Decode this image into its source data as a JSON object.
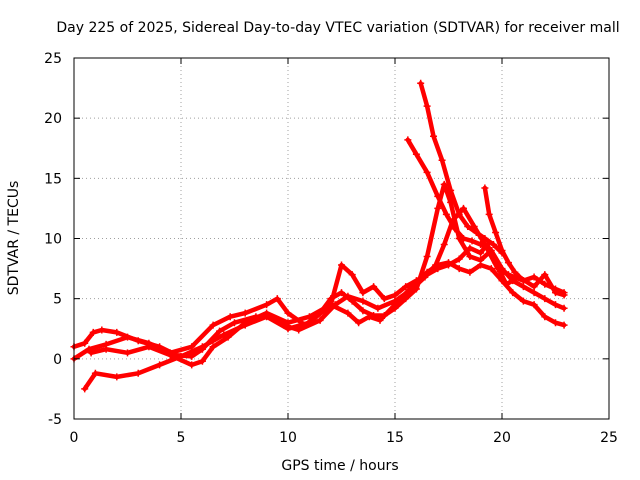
{
  "chart_data": {
    "type": "scatter",
    "title": "Day 225 of 2025, Sidereal Day-to-day VTEC variation (SDTVAR) for receiver mall",
    "xlabel": "GPS time / hours",
    "ylabel": "SDTVAR / TECUs",
    "xlim": [
      0,
      25
    ],
    "ylim": [
      -5,
      25
    ],
    "xticks": [
      0,
      5,
      10,
      15,
      20,
      25
    ],
    "yticks": [
      -5,
      0,
      5,
      10,
      15,
      20,
      25
    ],
    "grid": true,
    "marker": "+",
    "color": "#ff0000",
    "series": [
      {
        "name": "track-1",
        "x": [
          0,
          0.5,
          0.9,
          1.3,
          2.0,
          3.0,
          4.0,
          4.8,
          5.5,
          6.0,
          6.8,
          7.5,
          8.5,
          9.2,
          9.8,
          10.5,
          11.5,
          12.2,
          12.8,
          13.5,
          14.2,
          15.0,
          15.8,
          16.4,
          16.9,
          17.3,
          17.7,
          18.2,
          18.7,
          19.2,
          19.8,
          20.3,
          21.0,
          21.5,
          22.0,
          22.5,
          22.9
        ],
        "y": [
          1.0,
          1.3,
          2.2,
          2.4,
          2.2,
          1.5,
          1.0,
          0.3,
          0.2,
          0.8,
          2.3,
          3.0,
          3.5,
          3.5,
          2.8,
          2.4,
          3.2,
          4.5,
          5.2,
          4.8,
          4.2,
          4.8,
          5.8,
          6.8,
          7.8,
          9.5,
          11.5,
          12.5,
          11.0,
          9.5,
          7.5,
          7.0,
          6.5,
          6.8,
          6.2,
          5.8,
          5.5
        ]
      },
      {
        "name": "track-2",
        "x": [
          0,
          0.7,
          1.5,
          2.5,
          3.5,
          4.5,
          5.5,
          6.5,
          7.3,
          8.0,
          9.0,
          9.5,
          10.0,
          10.8,
          11.5,
          12.0,
          12.5,
          13.0,
          13.5,
          14.0,
          14.5,
          15.0,
          15.5,
          16.0,
          16.5,
          17.0,
          17.3,
          17.6,
          18.0,
          18.5,
          19.0,
          19.5,
          20.0,
          20.5,
          21.0,
          21.5,
          22.0,
          22.5,
          22.9
        ],
        "y": [
          0.0,
          0.8,
          1.2,
          1.8,
          1.3,
          0.5,
          1.0,
          2.8,
          3.5,
          3.8,
          4.5,
          5.0,
          3.8,
          2.8,
          3.8,
          5.0,
          5.5,
          4.8,
          4.0,
          3.6,
          3.6,
          4.2,
          5.0,
          5.8,
          8.5,
          12.5,
          14.5,
          13.0,
          10.0,
          8.5,
          8.2,
          9.0,
          7.5,
          6.5,
          6.0,
          5.5,
          5.0,
          4.5,
          4.2
        ]
      },
      {
        "name": "track-3",
        "x": [
          0.5,
          1.0,
          2.0,
          3.0,
          4.0,
          5.0,
          6.0,
          7.0,
          8.0,
          9.0,
          10.0,
          11.0,
          12.0,
          12.8,
          13.3,
          13.8,
          14.3,
          15.0,
          15.8,
          16.5,
          17.0,
          17.5,
          18.0,
          18.5,
          19.0,
          19.5,
          20.0,
          20.5,
          21.0,
          21.5,
          22.0,
          22.5,
          22.9
        ],
        "y": [
          -2.5,
          -1.2,
          -1.5,
          -1.2,
          -0.5,
          0.2,
          1.0,
          2.0,
          2.8,
          3.5,
          2.5,
          3.0,
          4.5,
          3.8,
          3.0,
          3.5,
          3.2,
          4.5,
          6.0,
          7.2,
          7.8,
          8.0,
          7.5,
          7.2,
          7.8,
          7.5,
          6.5,
          5.5,
          4.8,
          4.5,
          3.5,
          3.0,
          2.8
        ]
      },
      {
        "name": "track-4",
        "x": [
          0.8,
          1.5,
          2.5,
          3.5,
          4.5,
          5.5,
          6.0,
          6.5,
          7.2,
          8.0,
          9.0,
          10.0,
          11.0,
          12.0,
          12.5,
          13.0,
          13.5,
          14.0,
          14.5,
          15.0,
          15.5,
          16.0,
          16.5,
          17.0,
          17.5,
          18.0,
          18.5,
          19.0,
          19.3,
          19.7,
          20.2,
          20.8,
          21.5,
          22.0,
          22.5,
          22.9
        ],
        "y": [
          0.5,
          0.8,
          0.5,
          1.0,
          0.3,
          -0.5,
          -0.2,
          1.0,
          1.8,
          3.0,
          3.8,
          3.0,
          3.5,
          4.5,
          7.8,
          7.0,
          5.5,
          6.0,
          5.0,
          5.3,
          6.0,
          6.5,
          7.0,
          7.5,
          7.8,
          8.3,
          9.2,
          8.8,
          9.5,
          8.0,
          6.2,
          6.8,
          6.0,
          7.0,
          5.5,
          5.3
        ]
      },
      {
        "name": "track-5",
        "x": [
          15.6,
          16.0,
          16.5,
          17.0,
          17.4,
          17.8,
          18.2,
          18.6,
          19.0,
          19.4
        ],
        "y": [
          18.2,
          17.0,
          15.5,
          13.5,
          12.0,
          10.8,
          10.0,
          9.8,
          9.5,
          9.2
        ]
      },
      {
        "name": "track-6",
        "x": [
          16.2,
          16.5,
          16.8,
          17.2,
          17.6,
          18.0,
          18.4,
          18.8,
          19.2,
          19.6,
          20.0
        ],
        "y": [
          22.9,
          21.0,
          18.5,
          16.5,
          14.0,
          12.0,
          11.0,
          10.5,
          10.0,
          9.5,
          8.8
        ]
      },
      {
        "name": "track-7",
        "x": [
          19.2,
          19.4,
          19.7,
          20.0,
          20.3,
          20.6,
          21.0
        ],
        "y": [
          14.2,
          12.0,
          10.5,
          9.0,
          8.0,
          7.2,
          6.5
        ]
      }
    ]
  }
}
